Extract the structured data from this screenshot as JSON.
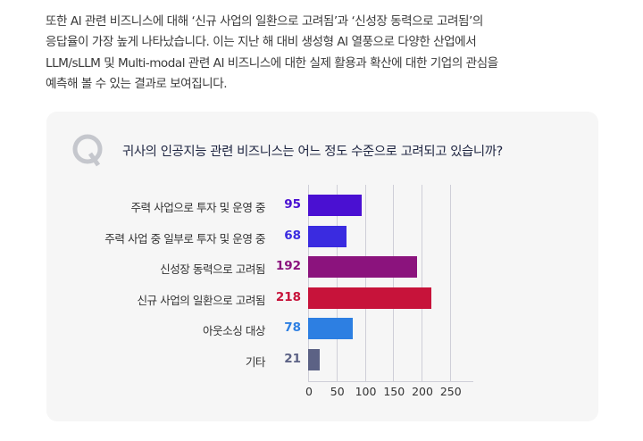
{
  "paragraph": {
    "lines": [
      "또한 AI 관련 비즈니스에 대해 ‘신규 사업의 일환으로 고려됨’과 ‘신성장 동력으로 고려됨’의",
      "응답율이 가장 높게 나타났습니다. 이는 지난 해 대비 생성형 AI 열풍으로 다양한 산업에서",
      "LLM/sLLM 및 Multi-modal 관련 AI 비즈니스에 대한 실제 활용과 확산에 대한 기업의 관심을",
      "예측해 볼 수 있는 결과로 보여집니다."
    ]
  },
  "card": {
    "icon": "q-letter-icon",
    "question": "귀사의 인공지능 관련 비즈니스는 어느 정도 수준으로 고려되고 있습니까?"
  },
  "chart_data": {
    "type": "bar",
    "orientation": "horizontal",
    "title": "귀사의 인공지능 관련 비즈니스는 어느 정도 수준으로 고려되고 있습니까?",
    "categories": [
      "주력 사업으로 투자 및 운영 중",
      "주력 사업 중 일부로 투자 및 운영 중",
      "신성장 동력으로 고려됨",
      "신규 사업의 일환으로 고려됨",
      "아웃소싱 대상",
      "기타"
    ],
    "values": [
      95,
      68,
      192,
      218,
      78,
      21
    ],
    "value_labels": [
      "95",
      "68",
      "192",
      "218",
      "78",
      "21"
    ],
    "colors": [
      "#4a10d2",
      "#3a2be0",
      "#8b137d",
      "#c7133a",
      "#2d7fe2",
      "#5c6285"
    ],
    "xlabel": "",
    "ylabel": "",
    "xlim": [
      0,
      290
    ],
    "xticks": [
      "0",
      "50",
      "100",
      "150",
      "200",
      "250"
    ],
    "xtick_values": [
      0,
      50,
      100,
      150,
      200,
      250
    ],
    "grid": true,
    "legend": "none"
  }
}
